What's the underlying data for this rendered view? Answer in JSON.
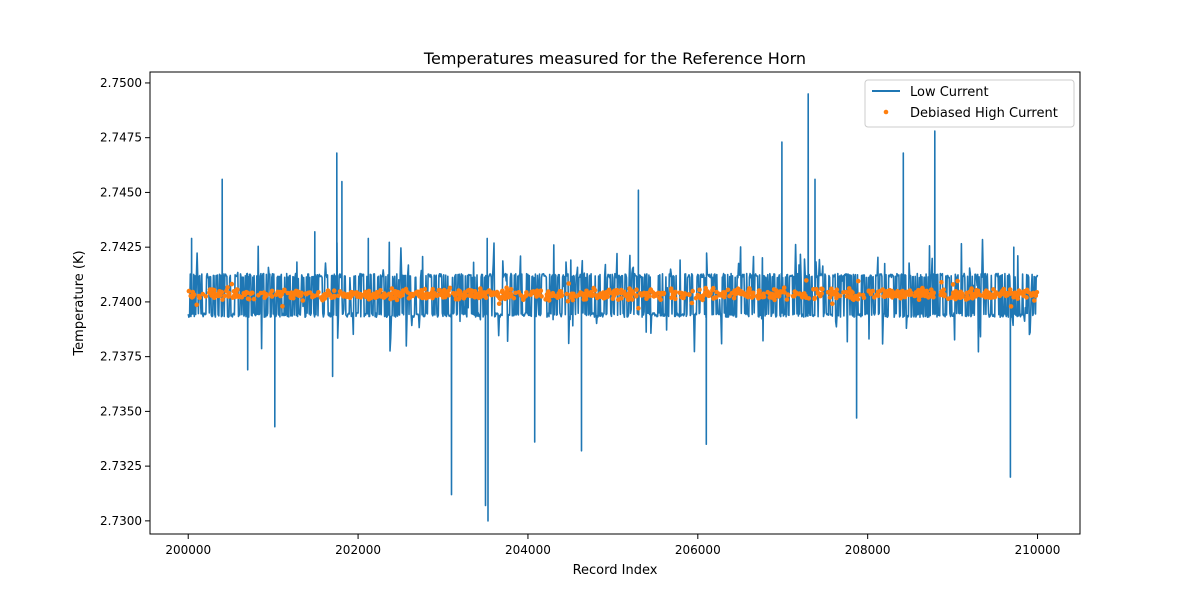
{
  "chart_data": {
    "type": "line",
    "title": "Temperatures measured for the Reference Horn",
    "xlabel": "Record Index",
    "ylabel": "Temperature (K)",
    "xlim": [
      199550,
      210500
    ],
    "ylim": [
      2.7294,
      2.7505
    ],
    "xticks": [
      200000,
      202000,
      204000,
      206000,
      208000,
      210000
    ],
    "xtick_labels": [
      "200000",
      "202000",
      "204000",
      "206000",
      "208000",
      "210000"
    ],
    "yticks": [
      2.73,
      2.7325,
      2.735,
      2.7375,
      2.74,
      2.7425,
      2.745,
      2.7475,
      2.75
    ],
    "ytick_labels": [
      "2.7300",
      "2.7325",
      "2.7350",
      "2.7375",
      "2.7400",
      "2.7425",
      "2.7450",
      "2.7475",
      "2.7500"
    ],
    "grid": false,
    "legend_position": "top-right",
    "series": [
      {
        "name": "Low Current",
        "kind": "line",
        "color": "#1f77b4",
        "x_range": [
          200000,
          210000
        ],
        "band_center": 2.7403,
        "band_halfwidth": 0.001,
        "spikes": [
          {
            "x": 200040,
            "y": 2.7429
          },
          {
            "x": 200400,
            "y": 2.7456
          },
          {
            "x": 200700,
            "y": 2.7369
          },
          {
            "x": 201020,
            "y": 2.7343
          },
          {
            "x": 201490,
            "y": 2.7432
          },
          {
            "x": 201700,
            "y": 2.7366
          },
          {
            "x": 201750,
            "y": 2.7468
          },
          {
            "x": 201810,
            "y": 2.7455
          },
          {
            "x": 202120,
            "y": 2.7429
          },
          {
            "x": 203100,
            "y": 2.7312
          },
          {
            "x": 203500,
            "y": 2.7307
          },
          {
            "x": 203530,
            "y": 2.73
          },
          {
            "x": 203520,
            "y": 2.7429
          },
          {
            "x": 204080,
            "y": 2.7336
          },
          {
            "x": 204630,
            "y": 2.7332
          },
          {
            "x": 205300,
            "y": 2.7451
          },
          {
            "x": 206100,
            "y": 2.7335
          },
          {
            "x": 206990,
            "y": 2.7473
          },
          {
            "x": 207300,
            "y": 2.7495
          },
          {
            "x": 207380,
            "y": 2.7456
          },
          {
            "x": 207870,
            "y": 2.7347
          },
          {
            "x": 208420,
            "y": 2.7468
          },
          {
            "x": 208790,
            "y": 2.7478
          },
          {
            "x": 209680,
            "y": 2.732
          },
          {
            "x": 209720,
            "y": 2.7425
          }
        ]
      },
      {
        "name": "Debiased High Current",
        "kind": "scatter",
        "color": "#ff7f0e",
        "x_range": [
          200000,
          210000
        ],
        "band_center": 2.74035,
        "band_halfwidth": 0.00035
      }
    ]
  }
}
